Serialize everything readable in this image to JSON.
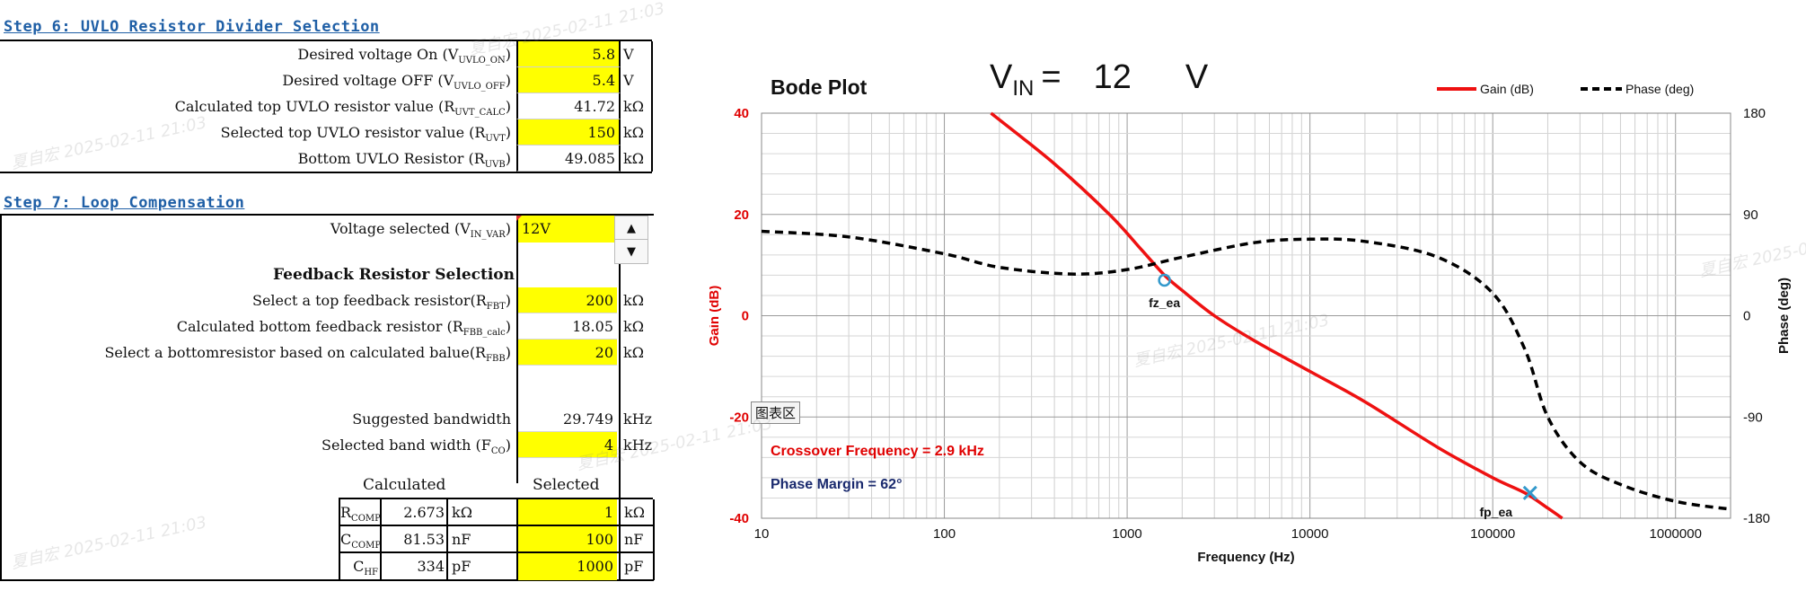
{
  "step6": {
    "title": "Step 6: UVLO Resistor Divider Selection",
    "rows": [
      {
        "label": "Desired voltage On (V",
        "sub": "UVLO_ON",
        "tail": ")",
        "value": "5.8",
        "unit": "V",
        "highlight": true
      },
      {
        "label": "Desired voltage OFF (V",
        "sub": "UVLO_OFF",
        "tail": ")",
        "value": "5.4",
        "unit": "V",
        "highlight": true
      },
      {
        "label": "Calculated top UVLO resistor value (R",
        "sub": "UVT_CALC",
        "tail": ")",
        "value": "41.72",
        "unit": "kΩ",
        "highlight": false
      },
      {
        "label": "Selected top UVLO resistor value (R",
        "sub": "UVT",
        "tail": ")",
        "value": "150",
        "unit": "kΩ",
        "highlight": true
      },
      {
        "label": "Bottom UVLO Resistor (R",
        "sub": "UVB",
        "tail": ")",
        "value": "49.085",
        "unit": "kΩ",
        "highlight": false
      }
    ]
  },
  "step7": {
    "title": "Step  7: Loop Compensation",
    "voltage_label": "Voltage selected (V",
    "voltage_sub": "IN_VAR",
    "voltage_tail": ")",
    "voltage_value": "12V",
    "feedback_heading": "Feedback Resistor Selection",
    "rows": [
      {
        "label": "Select a top feedback resistor(R",
        "sub": "FBT",
        "tail": ")",
        "value": "200",
        "unit": "kΩ",
        "highlight": true
      },
      {
        "label": "Calculated bottom feedback resistor (R",
        "sub": "FBB_calc",
        "tail": ")",
        "value": "18.05",
        "unit": "kΩ",
        "highlight": false
      },
      {
        "label": "Select a bottomresistor based on calculated balue(R",
        "sub": "FBB",
        "tail": ")",
        "value": "20",
        "unit": "kΩ",
        "highlight": true
      }
    ],
    "bw_rows": [
      {
        "label": "Suggested bandwidth",
        "sub": "",
        "tail": "",
        "value": "29.749",
        "unit": "kHz",
        "highlight": false
      },
      {
        "label": "Selected band width (F",
        "sub": "CO",
        "tail": ")",
        "value": "4",
        "unit": "kHz",
        "highlight": true
      }
    ],
    "comp_header_calc": "Calculated",
    "comp_header_sel": "Selected",
    "comp_rows": [
      {
        "name": "R",
        "sub": "COMP",
        "calc": "2.673",
        "calc_unit": "kΩ",
        "sel": "1",
        "sel_unit": "kΩ"
      },
      {
        "name": "C",
        "sub": "COMP",
        "calc": "81.53",
        "calc_unit": "nF",
        "sel": "100",
        "sel_unit": "nF"
      },
      {
        "name": "C",
        "sub": "HF",
        "calc": "334",
        "calc_unit": "pF",
        "sel": "1000",
        "sel_unit": "pF"
      }
    ]
  },
  "watermark_text": "夏自宏 2025-02-11 21:03",
  "tooltip": "图表区",
  "colors": {
    "highlight": "#ffff00",
    "title_blue": "#1f5fa6",
    "gain": "#ee1111",
    "phase": "#000000",
    "marker": "#3399cc"
  },
  "chart_data": {
    "type": "line",
    "title": "Bode Plot",
    "vin_label": "V",
    "vin_sub": "IN",
    "vin_eq": "=",
    "vin_value": "12",
    "vin_unit": "V",
    "xlabel": "Frequency (Hz)",
    "ylabel_left": "Gain (dB)",
    "ylabel_right": "Phase (deg)",
    "x_scale": "log",
    "xlim": [
      10,
      2000000
    ],
    "ylim_left": [
      -40,
      40
    ],
    "ylim_right": [
      -180,
      180
    ],
    "x_ticks": [
      "10",
      "100",
      "1000",
      "10000",
      "100000",
      "1000000"
    ],
    "y_ticks_left": [
      "40",
      "20",
      "0",
      "-20",
      "-40"
    ],
    "y_ticks_right": [
      "180",
      "90",
      "0",
      "-90",
      "-180"
    ],
    "legend_position": "top-right",
    "grid": true,
    "series": [
      {
        "name": "Gain (dB)",
        "axis": "left",
        "style": "solid",
        "x": [
          180,
          400,
          800,
          1200,
          1600,
          2000,
          3000,
          5000,
          10000,
          20000,
          50000,
          100000,
          150000,
          200000,
          240000
        ],
        "y": [
          40,
          30,
          20,
          13,
          8,
          5,
          0,
          -5,
          -11,
          -17,
          -26,
          -32,
          -35,
          -38,
          -40
        ]
      },
      {
        "name": "Phase (deg)",
        "axis": "right",
        "style": "dashed",
        "x": [
          10,
          30,
          100,
          200,
          500,
          1000,
          2000,
          5000,
          10000,
          20000,
          50000,
          100000,
          150000,
          200000,
          300000,
          500000,
          1000000,
          2000000
        ],
        "y": [
          75,
          70,
          55,
          43,
          37,
          41,
          52,
          65,
          68,
          66,
          52,
          20,
          -30,
          -90,
          -130,
          -150,
          -165,
          -172
        ]
      }
    ],
    "markers": [
      {
        "label": "fz_ea",
        "x": 1600,
        "y": 7,
        "symbol": "circle"
      },
      {
        "label": "fp_ea",
        "x": 160000,
        "y": -35,
        "symbol": "x"
      }
    ],
    "annotations": [
      "Crossover Frequency = 2.9 kHz",
      "Phase Margin = 62°"
    ]
  }
}
